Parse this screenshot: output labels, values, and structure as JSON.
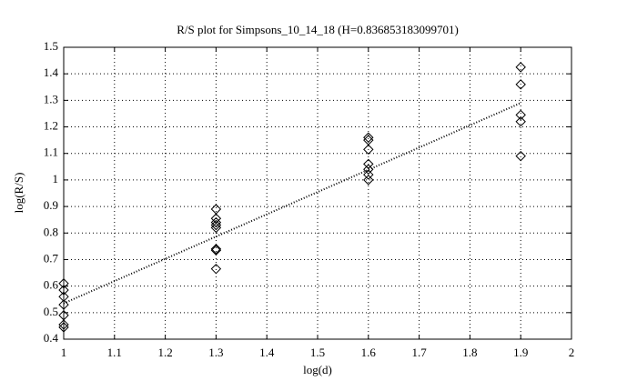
{
  "chart_data": {
    "type": "scatter",
    "title": "R/S plot for Simpsons_10_14_18 (H=0.836853183099701)",
    "x_label": "log(d)",
    "y_label": "log(R/S)",
    "x": [
      1,
      1,
      1,
      1,
      1,
      1,
      1,
      1.3,
      1.3,
      1.3,
      1.3,
      1.3,
      1.3,
      1.3,
      1.3,
      1.6,
      1.6,
      1.6,
      1.6,
      1.6,
      1.6,
      1.6,
      1.9,
      1.9,
      1.9,
      1.9,
      1.9
    ],
    "values": [
      0.61,
      0.585,
      0.56,
      0.53,
      0.49,
      0.455,
      0.445,
      0.89,
      0.855,
      0.84,
      0.83,
      0.82,
      0.74,
      0.735,
      0.665,
      1.16,
      1.15,
      1.115,
      1.06,
      1.04,
      1.02,
      1.0,
      1.425,
      1.36,
      1.245,
      1.22,
      1.09
    ],
    "color": "#000000",
    "fit": {
      "x": [
        1,
        1.9
      ],
      "values": [
        0.535,
        1.29
      ]
    },
    "xlim": [
      1,
      2
    ],
    "xticks": [
      1,
      1.1,
      1.2,
      1.3,
      1.4,
      1.5,
      1.6,
      1.7,
      1.8,
      1.9,
      2
    ],
    "ylim": [
      0.4,
      1.5
    ],
    "yticks": [
      0.4,
      0.5,
      0.6,
      0.7,
      0.8,
      0.9,
      1,
      1.1,
      1.2,
      1.3,
      1.4,
      1.5
    ],
    "grid": true
  }
}
